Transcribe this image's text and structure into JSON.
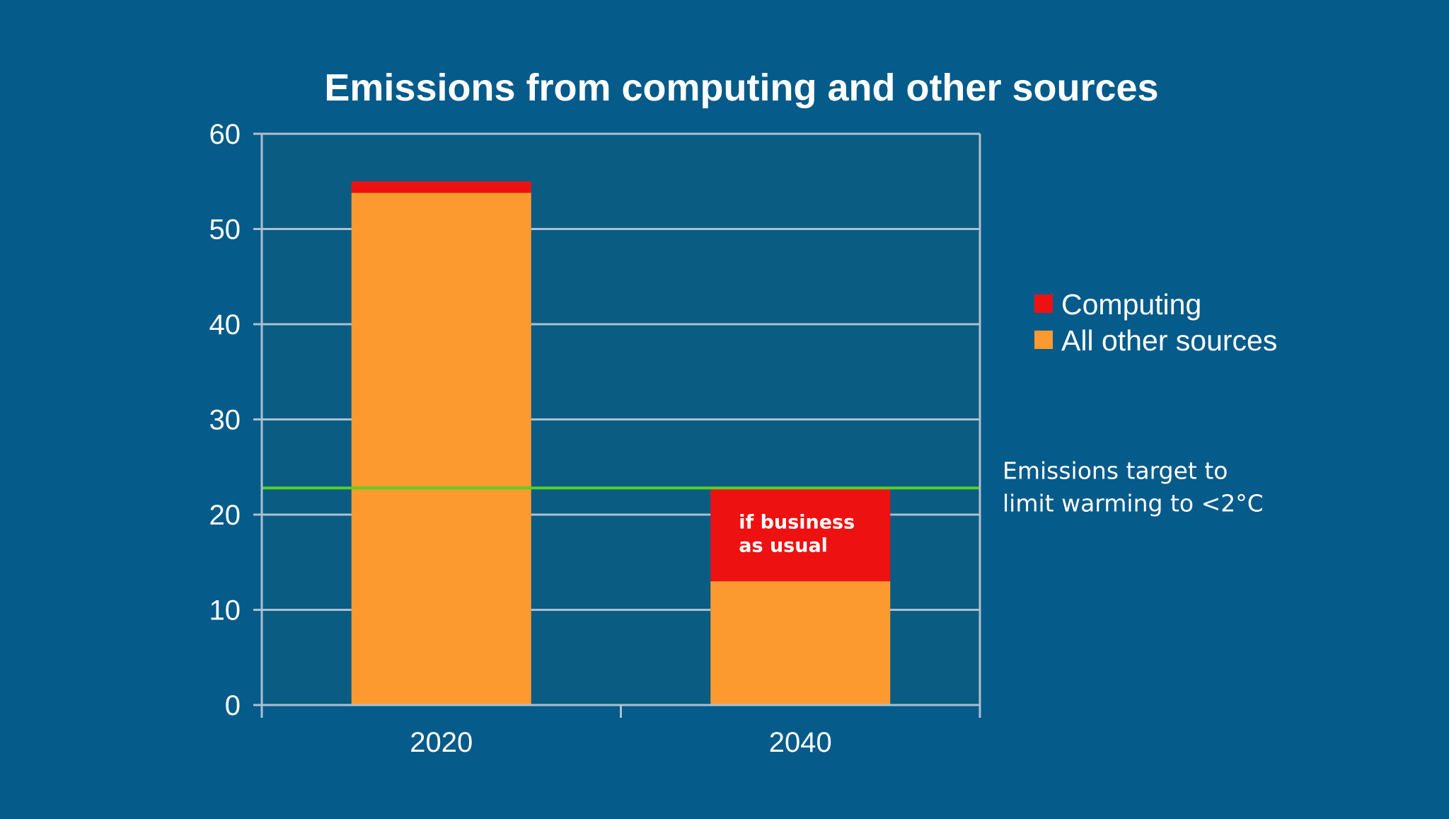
{
  "chart_data": {
    "type": "bar",
    "stacked": true,
    "title": "Emissions from computing and other sources",
    "xlabel": "",
    "ylabel": "",
    "categories": [
      "2020",
      "2040"
    ],
    "series": [
      {
        "name": "All other sources",
        "values": [
          53.8,
          13
        ],
        "color": "#fd9a2f"
      },
      {
        "name": "Computing",
        "values": [
          1.2,
          9.7
        ],
        "color": "#ee1111"
      }
    ],
    "ylim": [
      0,
      60
    ],
    "yticks": [
      0,
      10,
      20,
      30,
      40,
      50,
      60
    ],
    "grid": true,
    "legend": "right",
    "legend_order": [
      "Computing",
      "All other sources"
    ],
    "target": {
      "value": 22.8,
      "color": "#58d022",
      "label_lines": [
        "Emissions target to",
        "limit warming to <2°C"
      ]
    },
    "bar_annotation": {
      "category": "2040",
      "series": "Computing",
      "lines": [
        "if business",
        "as usual"
      ]
    },
    "colors": {
      "background": "#055b8a",
      "grid": "#aebfd0",
      "plot_area": "#0a5c82"
    }
  }
}
